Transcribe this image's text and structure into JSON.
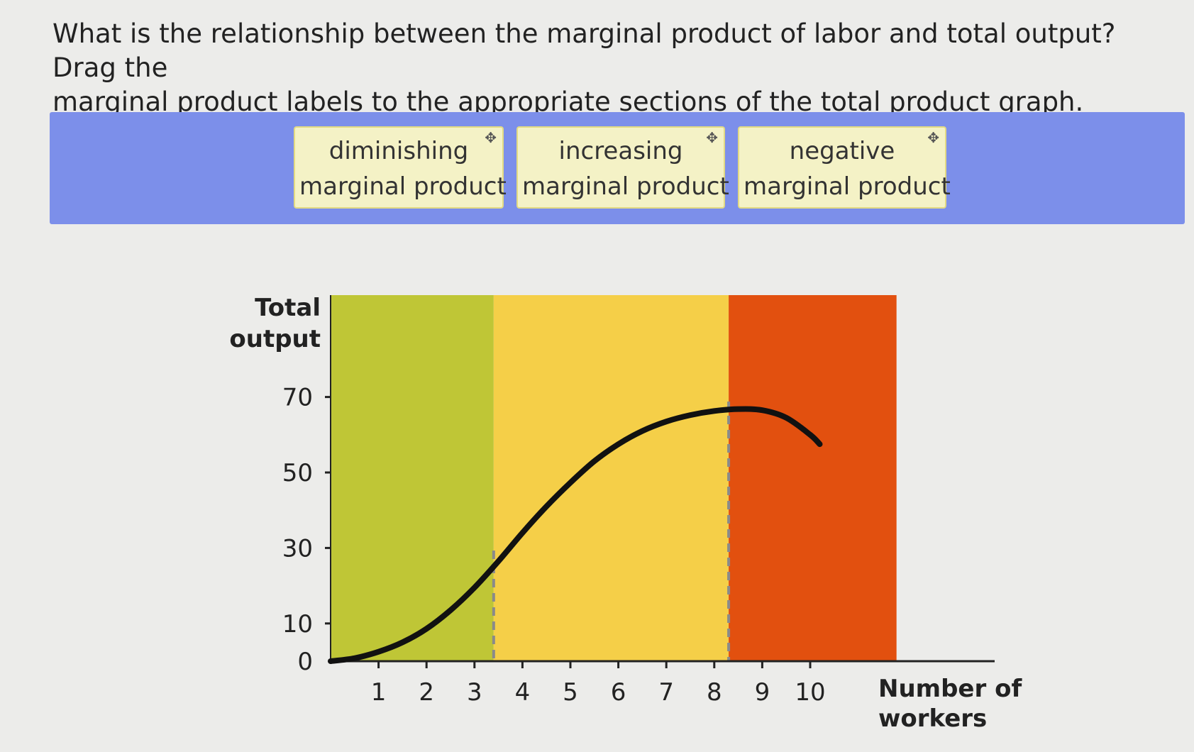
{
  "question": {
    "line1": "What is the relationship between the marginal product of labor and total output? Drag the",
    "line2": "marginal product labels to the appropriate sections of the total product graph."
  },
  "labels": [
    {
      "line1": "diminishing",
      "line2": "marginal product",
      "icon": "move-icon"
    },
    {
      "line1": "increasing",
      "line2": "marginal product",
      "icon": "move-icon"
    },
    {
      "line1": "negative",
      "line2": "marginal product",
      "icon": "move-icon"
    }
  ],
  "move_glyph": "✥",
  "chart_data": {
    "type": "line",
    "ylabel_line1": "Total",
    "ylabel_line2": "output",
    "xlabel_line1": "Number of",
    "xlabel_line2": "workers",
    "x_ticks": [
      1,
      2,
      3,
      4,
      5,
      6,
      7,
      8,
      9,
      10
    ],
    "y_ticks": [
      0,
      10,
      30,
      50,
      70
    ],
    "x_range": [
      0,
      13.5
    ],
    "y_range": [
      0,
      70
    ],
    "regions": [
      {
        "from": 0,
        "to": 3.4,
        "color": "#bfc636"
      },
      {
        "from": 3.4,
        "to": 8.3,
        "color": "#f5cf48"
      },
      {
        "from": 8.3,
        "to": 11.8,
        "color": "#e2500f"
      }
    ],
    "dashed_lines_x": [
      3.4,
      8.3
    ],
    "series": [
      {
        "x": [
          0,
          0.5,
          1,
          1.5,
          2,
          2.5,
          3,
          3.5,
          4,
          4.5,
          5,
          5.5,
          6,
          6.5,
          7,
          7.5,
          8,
          8.5,
          9,
          9.5,
          10,
          10.2
        ],
        "y": [
          0,
          0.8,
          2.5,
          5,
          8.6,
          13.5,
          19.5,
          26.5,
          34,
          41,
          47.3,
          53,
          57.5,
          61,
          63.5,
          65.2,
          66.3,
          66.8,
          66.5,
          64.5,
          60,
          57.5
        ]
      }
    ]
  }
}
